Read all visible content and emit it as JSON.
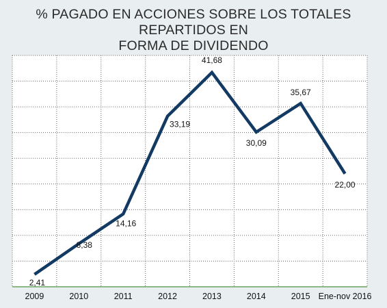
{
  "chart_data": {
    "type": "line",
    "title_lines": [
      "% PAGADO EN ACCIONES SOBRE LOS TOTALES REPARTIDOS EN",
      "FORMA DE DIVIDENDO"
    ],
    "categories": [
      "2009",
      "2010",
      "2011",
      "2012",
      "2013",
      "2014",
      "2015",
      "Ene-nov 2016"
    ],
    "values": [
      2.41,
      8.38,
      14.16,
      33.19,
      41.68,
      30.09,
      35.67,
      22.0
    ],
    "data_labels": [
      "2,41",
      "8,38",
      "14,16",
      "33,19",
      "41,68",
      "30,09",
      "35,67",
      "22,00"
    ],
    "ylim": [
      0,
      45
    ],
    "grid": true,
    "line_color": "#123a63",
    "baseline_color": "#6aa35f"
  }
}
